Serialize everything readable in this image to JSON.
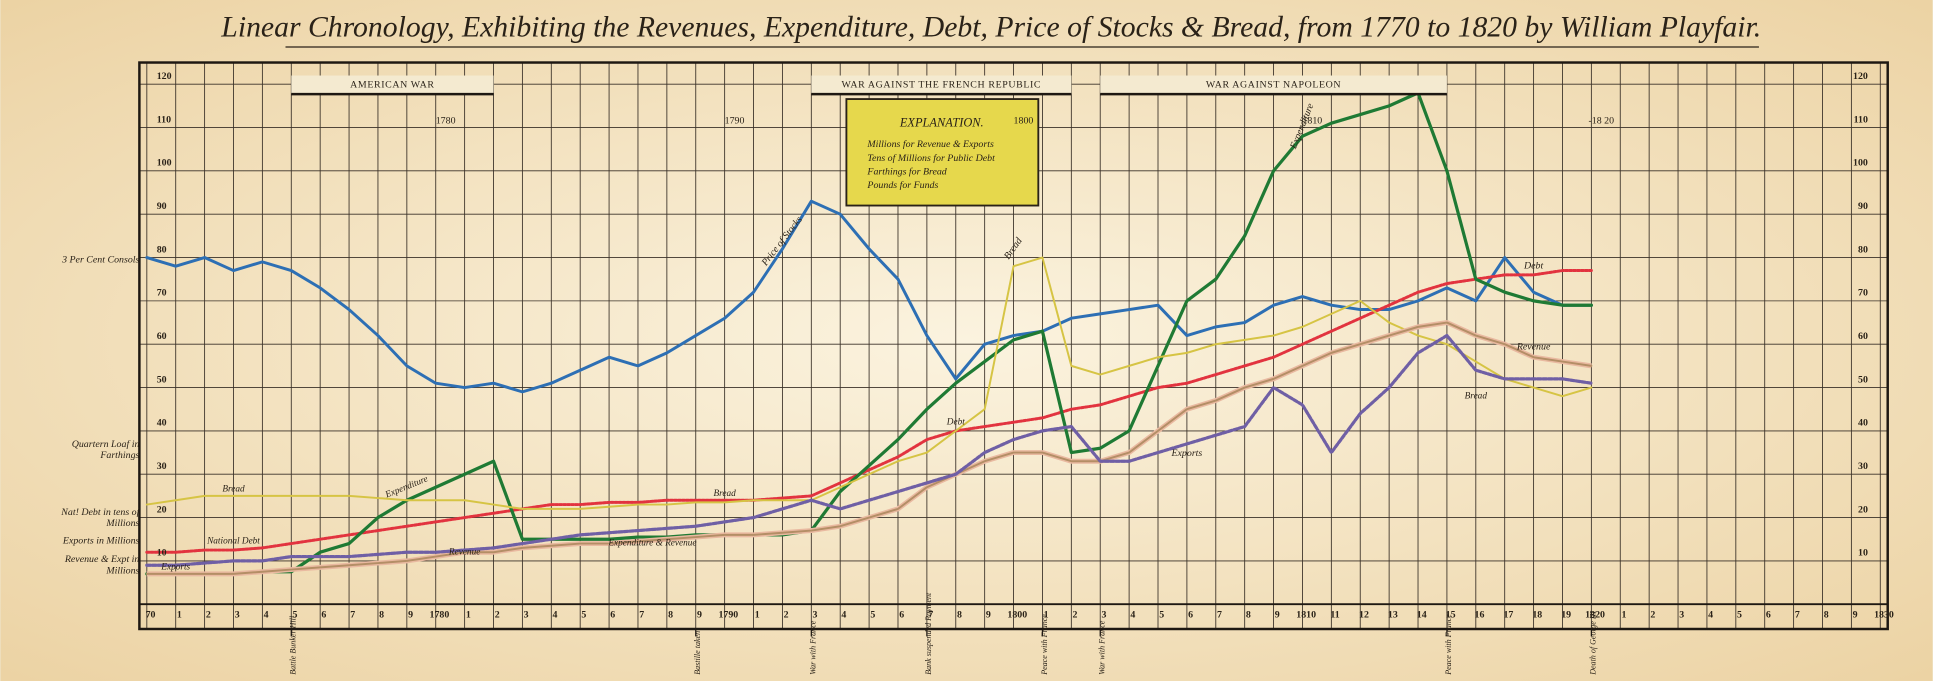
{
  "chart_data": {
    "type": "line",
    "title": "Linear Chronology, Exhibiting the Revenues, Expenditure, Debt, Price of Stocks & Bread, from 1770 to 1820 by William Playfair.",
    "x": [
      1770,
      1771,
      1772,
      1773,
      1774,
      1775,
      1776,
      1777,
      1778,
      1779,
      1780,
      1781,
      1782,
      1783,
      1784,
      1785,
      1786,
      1787,
      1788,
      1789,
      1790,
      1791,
      1792,
      1793,
      1794,
      1795,
      1796,
      1797,
      1798,
      1799,
      1800,
      1801,
      1802,
      1803,
      1804,
      1805,
      1806,
      1807,
      1808,
      1809,
      1810,
      1811,
      1812,
      1813,
      1814,
      1815,
      1816,
      1817,
      1818,
      1819,
      1820
    ],
    "series": [
      {
        "name": "Price of Stocks",
        "color": "#2d6fb4",
        "values": [
          80,
          78,
          80,
          77,
          79,
          77,
          73,
          68,
          62,
          55,
          51,
          50,
          51,
          49,
          51,
          54,
          57,
          55,
          58,
          62,
          66,
          72,
          82,
          93,
          90,
          82,
          75,
          62,
          52,
          60,
          62,
          63,
          66,
          67,
          68,
          69,
          62,
          64,
          65,
          69,
          71,
          69,
          68,
          68,
          70,
          73,
          70,
          80,
          72,
          69,
          69
        ]
      },
      {
        "name": "Debt",
        "color": "#e2333f",
        "values": [
          12,
          12,
          12.5,
          12.5,
          13,
          14,
          15,
          16,
          17,
          18,
          19,
          20,
          21,
          22,
          23,
          23,
          23.5,
          23.5,
          24,
          24,
          24,
          24,
          24.5,
          25,
          28,
          31,
          34,
          38,
          40,
          41,
          42,
          43,
          45,
          46,
          48,
          50,
          51,
          53,
          55,
          57,
          60,
          63,
          66,
          69,
          72,
          74,
          75,
          76,
          76,
          77,
          77
        ]
      },
      {
        "name": "Expenditure",
        "color": "#1f7a34",
        "values": [
          7,
          7,
          7,
          7,
          7.5,
          7.5,
          12,
          14,
          20,
          24,
          27,
          30,
          33,
          15,
          15,
          15,
          15,
          15.5,
          15.5,
          16,
          16,
          16,
          16,
          17,
          26,
          32,
          38,
          45,
          51,
          56,
          61,
          63,
          35,
          36,
          40,
          55,
          70,
          75,
          85,
          100,
          108,
          111,
          113,
          115,
          118,
          100,
          75,
          72,
          70,
          69,
          69
        ]
      },
      {
        "name": "Bread",
        "color": "#d6c444",
        "values": [
          23,
          24,
          25,
          25,
          25,
          25,
          25,
          25,
          24.5,
          24,
          24,
          24,
          23,
          22,
          22,
          22,
          22.5,
          23,
          23,
          23.5,
          23.5,
          24,
          24,
          24,
          27,
          30,
          33,
          35,
          40,
          45,
          78,
          80,
          55,
          53,
          55,
          57,
          58,
          60,
          61,
          62,
          64,
          67,
          70,
          65,
          62,
          60,
          56,
          52,
          50,
          48,
          50
        ]
      },
      {
        "name": "Revenue",
        "color": "#b48e66",
        "values": [
          7,
          7,
          7,
          7,
          7.5,
          8,
          8.5,
          9,
          9.5,
          10,
          11,
          12,
          12,
          13,
          13.5,
          14,
          14,
          14.5,
          15,
          15.5,
          16,
          16,
          16.5,
          17,
          18,
          20,
          22,
          27,
          30,
          33,
          35,
          35,
          33,
          33,
          35,
          40,
          45,
          47,
          50,
          52,
          55,
          58,
          60,
          62,
          64,
          65,
          62,
          60,
          57,
          56,
          55
        ]
      },
      {
        "name": "Exports",
        "color": "#6f5fa5",
        "values": [
          9,
          9,
          9.5,
          10,
          10,
          11,
          11,
          11,
          11.5,
          12,
          12,
          12.5,
          13,
          14,
          15,
          16,
          16.5,
          17,
          17.5,
          18,
          19,
          20,
          22,
          24,
          22,
          24,
          26,
          28,
          30,
          35,
          38,
          40,
          41,
          33,
          33,
          35,
          37,
          39,
          41,
          50,
          46,
          35,
          44,
          50,
          58,
          62,
          54,
          52,
          52,
          52,
          51
        ]
      }
    ],
    "xlim": [
      1770,
      1830
    ],
    "ylim": [
      0,
      125
    ],
    "xticks": [
      {
        "value": 1770,
        "label": "70"
      },
      {
        "value": 1771,
        "label": "1"
      },
      {
        "value": 1772,
        "label": "2"
      },
      {
        "value": 1773,
        "label": "3"
      },
      {
        "value": 1774,
        "label": "4"
      },
      {
        "value": 1775,
        "label": "5"
      },
      {
        "value": 1776,
        "label": "6"
      },
      {
        "value": 1777,
        "label": "7"
      },
      {
        "value": 1778,
        "label": "8"
      },
      {
        "value": 1779,
        "label": "9"
      },
      1780,
      {
        "value": 1781,
        "label": "1"
      },
      {
        "value": 1782,
        "label": "2"
      },
      {
        "value": 1783,
        "label": "3"
      },
      {
        "value": 1784,
        "label": "4"
      },
      {
        "value": 1785,
        "label": "5"
      },
      {
        "value": 1786,
        "label": "6"
      },
      {
        "value": 1787,
        "label": "7"
      },
      {
        "value": 1788,
        "label": "8"
      },
      {
        "value": 1789,
        "label": "9"
      },
      1790,
      {
        "value": 1791,
        "label": "1"
      },
      {
        "value": 1792,
        "label": "2"
      },
      {
        "value": 1793,
        "label": "3"
      },
      {
        "value": 1794,
        "label": "4"
      },
      {
        "value": 1795,
        "label": "5"
      },
      {
        "value": 1796,
        "label": "6"
      },
      {
        "value": 1797,
        "label": "7"
      },
      {
        "value": 1798,
        "label": "8"
      },
      {
        "value": 1799,
        "label": "9"
      },
      1800,
      {
        "value": 1801,
        "label": "1"
      },
      {
        "value": 1802,
        "label": "2"
      },
      {
        "value": 1803,
        "label": "3"
      },
      {
        "value": 1804,
        "label": "4"
      },
      {
        "value": 1805,
        "label": "5"
      },
      {
        "value": 1806,
        "label": "6"
      },
      {
        "value": 1807,
        "label": "7"
      },
      {
        "value": 1808,
        "label": "8"
      },
      {
        "value": 1809,
        "label": "9"
      },
      1810,
      {
        "value": 1811,
        "label": "11"
      },
      {
        "value": 1812,
        "label": "12"
      },
      {
        "value": 1813,
        "label": "13"
      },
      {
        "value": 1814,
        "label": "14"
      },
      {
        "value": 1815,
        "label": "15"
      },
      {
        "value": 1816,
        "label": "16"
      },
      {
        "value": 1817,
        "label": "17"
      },
      {
        "value": 1818,
        "label": "18"
      },
      {
        "value": 1819,
        "label": "19"
      },
      1820,
      {
        "value": 1821,
        "label": "1"
      },
      {
        "value": 1822,
        "label": "2"
      },
      {
        "value": 1823,
        "label": "3"
      },
      {
        "value": 1824,
        "label": "4"
      },
      {
        "value": 1825,
        "label": "5"
      },
      {
        "value": 1826,
        "label": "6"
      },
      {
        "value": 1827,
        "label": "7"
      },
      {
        "value": 1828,
        "label": "8"
      },
      {
        "value": 1829,
        "label": "9"
      },
      1830
    ],
    "yticks": [
      10,
      20,
      30,
      40,
      50,
      60,
      70,
      80,
      90,
      100,
      110,
      120
    ],
    "top_labels": [
      1780,
      1790,
      1800,
      1810,
      {
        "value": 1820,
        "label": "-18 20"
      }
    ],
    "grid": true,
    "wars": [
      {
        "label": "AMERICAN WAR",
        "start": 1775,
        "end": 1782
      },
      {
        "label": "WAR AGAINST THE FRENCH REPUBLIC",
        "start": 1793,
        "end": 1802
      },
      {
        "label": "WAR AGAINST NAPOLEON",
        "start": 1803,
        "end": 1815
      }
    ],
    "events": [
      {
        "label": "Battle Bunker Hill",
        "x": 1775
      },
      {
        "label": "Bastille taken",
        "x": 1789
      },
      {
        "label": "War with France",
        "x": 1793
      },
      {
        "label": "Bank suspended Payment",
        "x": 1797
      },
      {
        "label": "Peace with France",
        "x": 1801
      },
      {
        "label": "War with France",
        "x": 1803
      },
      {
        "label": "Peace with France",
        "x": 1815
      },
      {
        "label": "Death of George III",
        "x": 1820
      }
    ],
    "explanation": {
      "title": "EXPLANATION.",
      "lines": [
        "Millions for Revenue & Exports",
        "Tens of Millions for Public Debt",
        "Farthings for Bread",
        "Pounds for Funds"
      ]
    },
    "left_labels": [
      "3 Per Cent Consols",
      "Quartern Loaf in Farthings",
      "Nat! Debt in tens of Millions",
      "Exports in Millions",
      "Revenue & Expt in Millions"
    ],
    "annotations": [
      "National Debt",
      "Expenditure & Revenue",
      "Bread",
      "Bread",
      "Debt",
      "Expenditure",
      "Exports",
      "Revenue",
      "Bread"
    ]
  }
}
